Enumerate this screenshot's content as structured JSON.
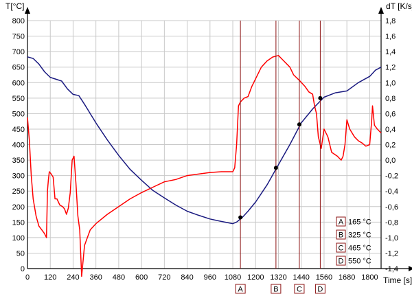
{
  "chart_data": {
    "type": "line",
    "xlabel": "Time [s]",
    "ylabel_left": "T[°C]",
    "ylabel_right": "dT [K/s]",
    "xlim": [
      0,
      1860
    ],
    "ylim_left": [
      0,
      800
    ],
    "ylim_right": [
      -1.4,
      1.8
    ],
    "x_ticks": [
      "0",
      "120",
      "240",
      "360",
      "480",
      "600",
      "720",
      "840",
      "960",
      "1080",
      "1200",
      "1320",
      "1440",
      "1560",
      "1680",
      "1800"
    ],
    "y_ticks_left": [
      "0",
      "50",
      "100",
      "150",
      "200",
      "250",
      "300",
      "350",
      "400",
      "450",
      "500",
      "550",
      "600",
      "650",
      "700",
      "750",
      "800"
    ],
    "y_ticks_right": [
      "-1,4",
      "-1,2",
      "-1,0",
      "-0,8",
      "-0,6",
      "-0,4",
      "-0,2",
      "0,0",
      "0,2",
      "0,4",
      "0,6",
      "0,8",
      "1,0",
      "1,2",
      "1,4",
      "1,6",
      "1,8"
    ],
    "grid": true,
    "legend_position": "bottom-right",
    "series": [
      {
        "axis": "left",
        "color": "#1a1a80",
        "points": [
          [
            0,
            683
          ],
          [
            30,
            678
          ],
          [
            60,
            660
          ],
          [
            90,
            635
          ],
          [
            120,
            617
          ],
          [
            180,
            605
          ],
          [
            210,
            580
          ],
          [
            240,
            562
          ],
          [
            270,
            558
          ],
          [
            300,
            530
          ],
          [
            360,
            470
          ],
          [
            420,
            415
          ],
          [
            480,
            365
          ],
          [
            540,
            320
          ],
          [
            600,
            285
          ],
          [
            660,
            252
          ],
          [
            720,
            228
          ],
          [
            780,
            205
          ],
          [
            840,
            185
          ],
          [
            900,
            172
          ],
          [
            960,
            160
          ],
          [
            1020,
            152
          ],
          [
            1080,
            145
          ],
          [
            1100,
            150
          ],
          [
            1130,
            165
          ],
          [
            1160,
            185
          ],
          [
            1200,
            215
          ],
          [
            1260,
            270
          ],
          [
            1320,
            335
          ],
          [
            1380,
            400
          ],
          [
            1440,
            470
          ],
          [
            1500,
            515
          ],
          [
            1560,
            553
          ],
          [
            1620,
            567
          ],
          [
            1680,
            573
          ],
          [
            1740,
            600
          ],
          [
            1800,
            620
          ],
          [
            1830,
            640
          ],
          [
            1860,
            650
          ]
        ]
      },
      {
        "axis": "right",
        "color": "#ff0000",
        "points": [
          [
            0,
            0.55
          ],
          [
            10,
            0.25
          ],
          [
            20,
            -0.2
          ],
          [
            30,
            -0.5
          ],
          [
            45,
            -0.72
          ],
          [
            60,
            -0.85
          ],
          [
            75,
            -0.9
          ],
          [
            90,
            -0.95
          ],
          [
            100,
            -1.0
          ],
          [
            105,
            -0.4
          ],
          [
            110,
            -0.25
          ],
          [
            115,
            -0.15
          ],
          [
            125,
            -0.18
          ],
          [
            135,
            -0.22
          ],
          [
            145,
            -0.5
          ],
          [
            155,
            -0.5
          ],
          [
            170,
            -0.58
          ],
          [
            185,
            -0.6
          ],
          [
            195,
            -0.63
          ],
          [
            205,
            -0.7
          ],
          [
            215,
            -0.62
          ],
          [
            225,
            -0.42
          ],
          [
            235,
            0.0
          ],
          [
            245,
            0.05
          ],
          [
            255,
            -0.3
          ],
          [
            265,
            -0.72
          ],
          [
            275,
            -0.9
          ],
          [
            285,
            -1.5
          ],
          [
            300,
            -1.1
          ],
          [
            330,
            -0.9
          ],
          [
            360,
            -0.82
          ],
          [
            420,
            -0.7
          ],
          [
            480,
            -0.6
          ],
          [
            540,
            -0.5
          ],
          [
            600,
            -0.42
          ],
          [
            660,
            -0.35
          ],
          [
            720,
            -0.28
          ],
          [
            780,
            -0.25
          ],
          [
            840,
            -0.2
          ],
          [
            900,
            -0.18
          ],
          [
            960,
            -0.16
          ],
          [
            1020,
            -0.15
          ],
          [
            1080,
            -0.15
          ],
          [
            1090,
            -0.1
          ],
          [
            1100,
            0.2
          ],
          [
            1110,
            0.7
          ],
          [
            1120,
            0.75
          ],
          [
            1140,
            0.8
          ],
          [
            1160,
            0.82
          ],
          [
            1180,
            0.95
          ],
          [
            1200,
            1.05
          ],
          [
            1230,
            1.2
          ],
          [
            1260,
            1.28
          ],
          [
            1290,
            1.33
          ],
          [
            1320,
            1.35
          ],
          [
            1340,
            1.3
          ],
          [
            1380,
            1.2
          ],
          [
            1400,
            1.1
          ],
          [
            1430,
            1.03
          ],
          [
            1460,
            0.95
          ],
          [
            1480,
            0.88
          ],
          [
            1500,
            0.85
          ],
          [
            1510,
            0.7
          ],
          [
            1520,
            0.6
          ],
          [
            1530,
            0.3
          ],
          [
            1545,
            0.15
          ],
          [
            1560,
            0.4
          ],
          [
            1580,
            0.3
          ],
          [
            1600,
            0.1
          ],
          [
            1630,
            0.05
          ],
          [
            1650,
            0.0
          ],
          [
            1660,
            0.05
          ],
          [
            1670,
            0.2
          ],
          [
            1680,
            0.52
          ],
          [
            1695,
            0.4
          ],
          [
            1720,
            0.3
          ],
          [
            1740,
            0.25
          ],
          [
            1760,
            0.22
          ],
          [
            1780,
            0.18
          ],
          [
            1800,
            0.2
          ],
          [
            1810,
            0.5
          ],
          [
            1815,
            0.7
          ],
          [
            1825,
            0.45
          ],
          [
            1840,
            0.4
          ],
          [
            1860,
            0.35
          ]
        ]
      }
    ],
    "markers": [
      {
        "label": "A",
        "value": "165 °C",
        "x": 1120,
        "y": 165
      },
      {
        "label": "B",
        "value": "325 °C",
        "x": 1307,
        "y": 325
      },
      {
        "label": "C",
        "value": "465 °C",
        "x": 1430,
        "y": 465
      },
      {
        "label": "D",
        "value": "550 °C",
        "x": 1540,
        "y": 550
      }
    ]
  }
}
